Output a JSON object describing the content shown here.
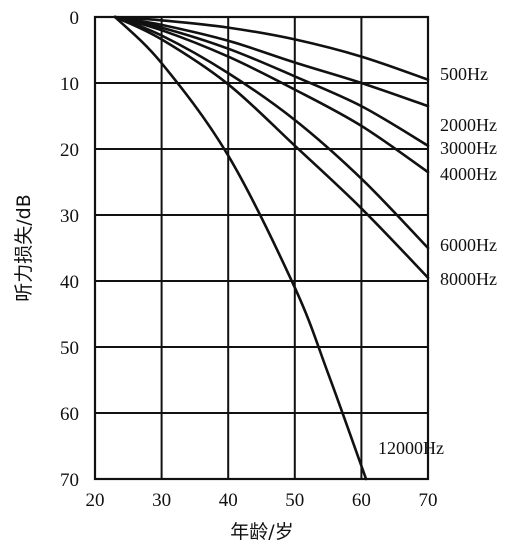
{
  "chart_data": {
    "type": "line",
    "title": "",
    "xlabel": "年龄/岁",
    "ylabel": "听力损失/dB",
    "xlim": [
      20,
      70
    ],
    "ylim": [
      0,
      70
    ],
    "y_inverted": true,
    "grid": true,
    "x_ticks": [
      "20",
      "30",
      "40",
      "50",
      "60",
      "70"
    ],
    "y_ticks": [
      "0",
      "10",
      "20",
      "30",
      "40",
      "50",
      "60",
      "70"
    ],
    "series": [
      {
        "name": "500Hz",
        "x": [
          23,
          30,
          40,
          50,
          60,
          70
        ],
        "y": [
          0,
          0.5,
          1.6,
          3.4,
          6.0,
          9.5
        ]
      },
      {
        "name": "2000Hz",
        "x": [
          23,
          30,
          40,
          50,
          60,
          70
        ],
        "y": [
          0,
          1.2,
          3.6,
          6.9,
          10.0,
          13.5
        ]
      },
      {
        "name": "3000Hz",
        "x": [
          23,
          30,
          40,
          50,
          60,
          70
        ],
        "y": [
          0,
          1.6,
          4.8,
          9.0,
          13.5,
          19.5
        ]
      },
      {
        "name": "4000Hz",
        "x": [
          23,
          30,
          40,
          50,
          60,
          70
        ],
        "y": [
          0,
          2.0,
          6.0,
          11.0,
          16.5,
          23.5
        ]
      },
      {
        "name": "6000Hz",
        "x": [
          23,
          30,
          40,
          50,
          60,
          70
        ],
        "y": [
          0,
          2.8,
          8.5,
          15.6,
          24.5,
          35.0
        ]
      },
      {
        "name": "8000Hz",
        "x": [
          23,
          30,
          40,
          50,
          60,
          70
        ],
        "y": [
          0,
          3.4,
          10.2,
          19.5,
          29.0,
          39.5
        ]
      },
      {
        "name": "12000Hz",
        "x": [
          23,
          30,
          40,
          50,
          55,
          60.7
        ],
        "y": [
          0,
          7.0,
          21.0,
          41.0,
          54.0,
          70.0
        ]
      }
    ]
  }
}
